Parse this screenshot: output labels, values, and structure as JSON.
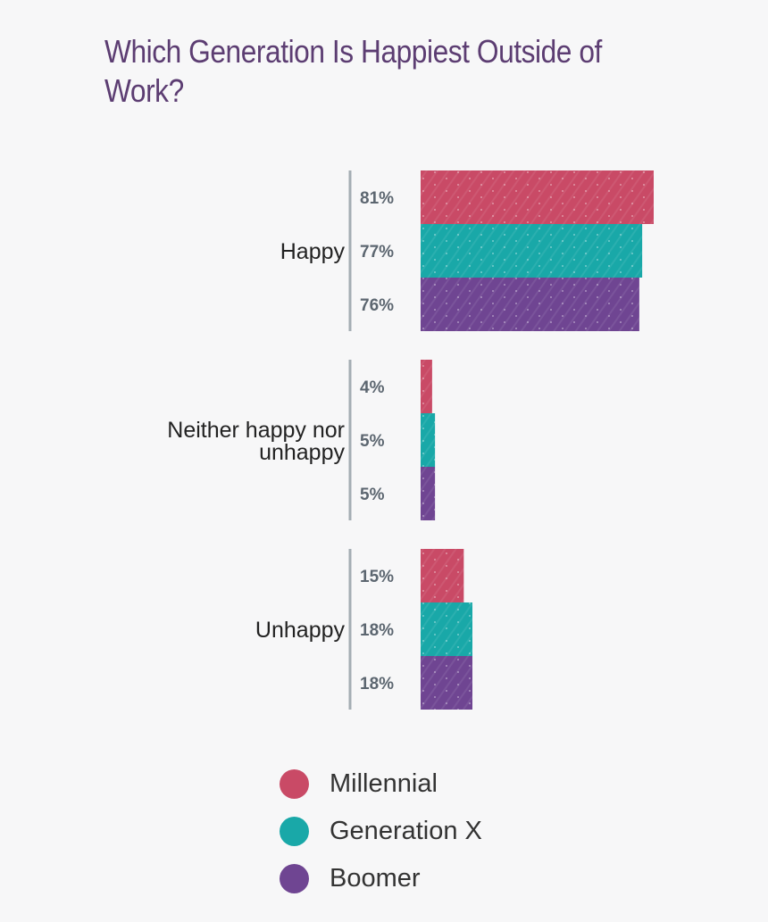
{
  "chart_data": {
    "type": "bar",
    "orientation": "horizontal",
    "title": "Which Generation Is Happiest Outside of Work?",
    "categories": [
      "Happy",
      "Neither happy nor unhappy",
      "Unhappy"
    ],
    "series": [
      {
        "name": "Millennial",
        "color": "#c94a66",
        "values": [
          81,
          4,
          15
        ],
        "labels": [
          "81%",
          "4%",
          "15%"
        ]
      },
      {
        "name": "Generation X",
        "color": "#19a8a8",
        "values": [
          77,
          5,
          18
        ],
        "labels": [
          "77%",
          "5%",
          "18%"
        ]
      },
      {
        "name": "Boomer",
        "color": "#6f4592",
        "values": [
          76,
          5,
          18
        ],
        "labels": [
          "76%",
          "5%",
          "18%"
        ]
      }
    ],
    "xlim": [
      0,
      100
    ],
    "legend_position": "bottom",
    "grid": false
  },
  "legend": {
    "items": [
      {
        "label": "Millennial",
        "color": "#c94a66"
      },
      {
        "label": "Generation X",
        "color": "#19a8a8"
      },
      {
        "label": "Boomer",
        "color": "#6f4592"
      }
    ]
  }
}
